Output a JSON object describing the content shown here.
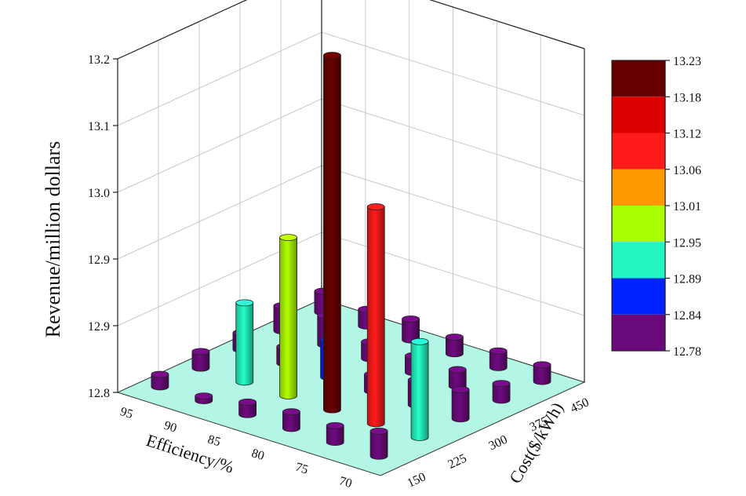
{
  "chart_data": {
    "type": "bar3d",
    "ylabel": "Revenue/million dollars",
    "xlabel": "Efficiency/%",
    "zlabel": "Cost($/kWh)",
    "efficiency_ticks": [
      "95",
      "90",
      "85",
      "80",
      "75",
      "70"
    ],
    "cost_ticks": [
      "150",
      "225",
      "300",
      "375",
      "450"
    ],
    "vertical_ticks": [
      "12.8",
      "12.9",
      "12.9",
      "13.0",
      "13.1",
      "13.2"
    ],
    "vertical_range": [
      12.8,
      13.2
    ],
    "grid": true,
    "floor_color": "#b4f6e6",
    "efficiency_values": [
      95,
      90,
      85,
      80,
      75,
      70
    ],
    "cost_values": [
      150,
      225,
      300,
      375,
      450
    ],
    "revenue_grid": [
      [
        12.815,
        12.82,
        12.82,
        12.83,
        12.825
      ],
      [
        12.8,
        12.895,
        12.82,
        12.835,
        12.82
      ],
      [
        12.815,
        12.99,
        12.845,
        12.82,
        12.825
      ],
      [
        12.82,
        13.225,
        12.82,
        12.82,
        12.82
      ],
      [
        12.82,
        13.06,
        12.83,
        12.82,
        12.82
      ],
      [
        12.83,
        12.915,
        12.835,
        12.82,
        12.82
      ]
    ],
    "colorbar": {
      "labels": [
        "13.23",
        "13.18",
        "13.12",
        "13.06",
        "13.01",
        "12.95",
        "12.89",
        "12.84",
        "12.78"
      ],
      "boundaries": [
        13.23,
        13.18,
        13.12,
        13.06,
        13.01,
        12.95,
        12.89,
        12.84,
        12.78
      ],
      "colors": [
        "#660000",
        "#dd0000",
        "#ff1a1a",
        "#ff9900",
        "#aaff00",
        "#22f5c0",
        "#0022ff",
        "#6a0a7a"
      ]
    }
  }
}
